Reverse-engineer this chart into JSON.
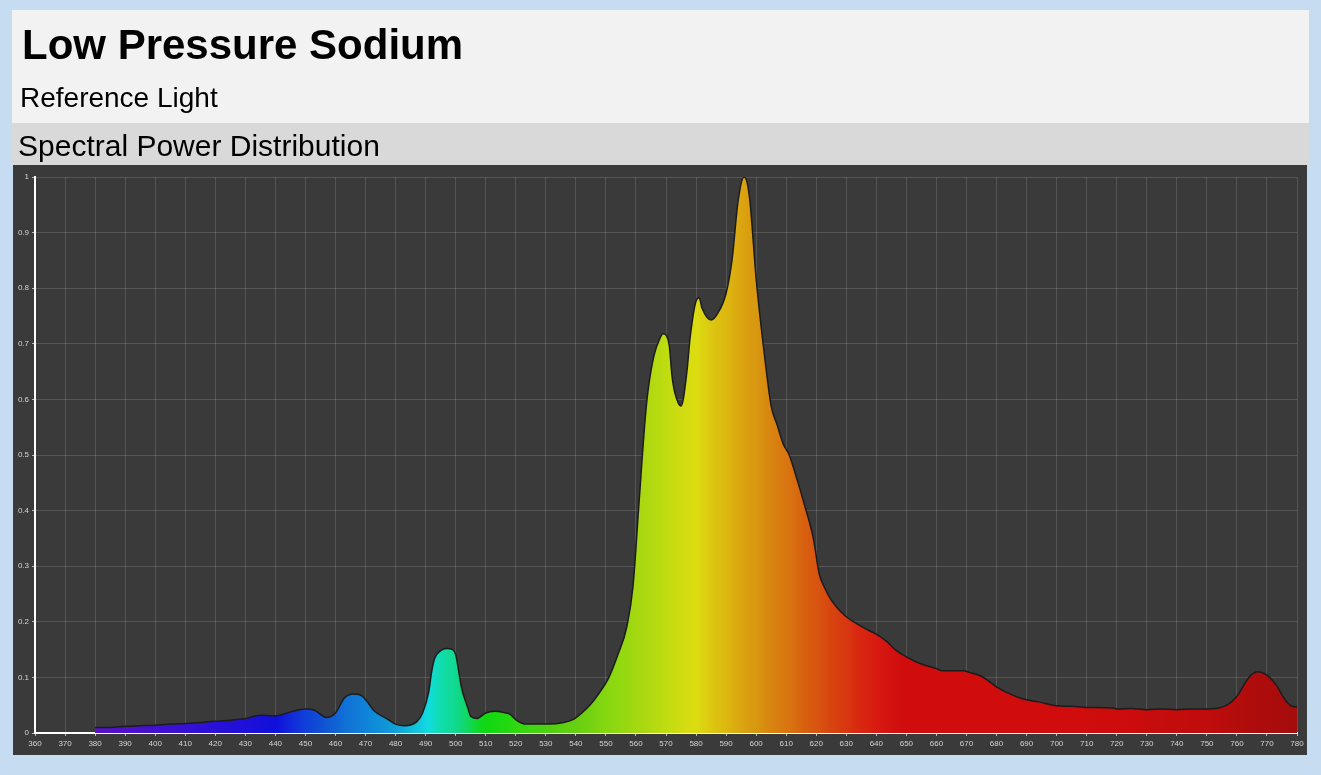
{
  "chart_data": {
    "type": "area",
    "title": "Low Pressure Sodium",
    "subtitle": "Reference Light",
    "annotations": [
      "Spectral Power Distribution"
    ],
    "x": [
      380,
      385,
      390,
      395,
      400,
      405,
      410,
      415,
      420,
      425,
      430,
      435,
      440,
      445,
      450,
      453,
      457,
      460,
      463,
      466,
      469,
      473,
      477,
      480,
      483,
      487,
      489,
      491,
      492,
      493,
      495,
      497,
      499,
      500,
      502,
      504,
      505,
      507,
      510,
      513,
      516,
      518,
      520,
      523,
      531,
      536,
      539,
      542,
      545,
      547,
      551,
      554,
      557,
      559,
      561,
      563,
      564,
      566,
      568,
      569,
      571,
      572,
      573,
      575,
      577,
      578,
      580,
      581,
      582,
      585,
      587,
      590,
      592,
      594,
      596,
      597,
      598,
      600,
      603,
      605,
      607,
      609,
      611,
      614,
      616,
      619,
      621,
      623,
      625,
      628,
      631,
      634,
      638,
      640,
      644,
      646,
      650,
      655,
      660,
      662,
      669,
      671,
      675,
      680,
      683,
      689,
      694,
      700,
      705,
      710,
      719,
      720,
      725,
      730,
      735,
      740,
      745,
      750,
      754,
      757,
      760,
      764,
      767,
      770,
      773,
      776,
      778,
      780
    ],
    "values": [
      0.01,
      0.01,
      0.012,
      0.013,
      0.014,
      0.016,
      0.017,
      0.019,
      0.021,
      0.023,
      0.026,
      0.032,
      0.031,
      0.038,
      0.043,
      0.041,
      0.028,
      0.036,
      0.063,
      0.07,
      0.066,
      0.039,
      0.026,
      0.016,
      0.013,
      0.02,
      0.036,
      0.073,
      0.11,
      0.134,
      0.148,
      0.152,
      0.15,
      0.141,
      0.08,
      0.046,
      0.03,
      0.026,
      0.036,
      0.039,
      0.037,
      0.034,
      0.024,
      0.016,
      0.016,
      0.019,
      0.024,
      0.036,
      0.052,
      0.066,
      0.1,
      0.141,
      0.192,
      0.263,
      0.412,
      0.561,
      0.615,
      0.679,
      0.71,
      0.718,
      0.7,
      0.642,
      0.611,
      0.588,
      0.652,
      0.71,
      0.777,
      0.783,
      0.764,
      0.743,
      0.753,
      0.791,
      0.852,
      0.957,
      1.0,
      0.99,
      0.953,
      0.817,
      0.669,
      0.588,
      0.554,
      0.52,
      0.5,
      0.449,
      0.412,
      0.351,
      0.286,
      0.259,
      0.239,
      0.219,
      0.205,
      0.195,
      0.183,
      0.178,
      0.162,
      0.151,
      0.137,
      0.124,
      0.116,
      0.112,
      0.112,
      0.109,
      0.102,
      0.083,
      0.074,
      0.061,
      0.056,
      0.049,
      0.048,
      0.046,
      0.045,
      0.043,
      0.044,
      0.042,
      0.043,
      0.042,
      0.043,
      0.043,
      0.045,
      0.051,
      0.066,
      0.1,
      0.11,
      0.104,
      0.087,
      0.06,
      0.049,
      0.047
    ],
    "colors": [
      "#5a10c8",
      "#5410ca",
      "#4e10cc",
      "#4810ce",
      "#4210d0",
      "#3c10d2",
      "#3610d4",
      "#3010d6",
      "#2a10d8",
      "#2410d8",
      "#1e10da",
      "#1810da",
      "#1010dc",
      "#1028da",
      "#1040d8",
      "#1048d6",
      "#1058d4",
      "#1062d4",
      "#1070d6",
      "#1078d6",
      "#1080d8",
      "#108cd8",
      "#1096d8",
      "#10a0d8",
      "#10b0da",
      "#10c4dc",
      "#10d0de",
      "#10dce0",
      "#10dcd0",
      "#10dcc8",
      "#10dcb0",
      "#10dca0",
      "#10da94",
      "#10d890",
      "#10d878",
      "#10d860",
      "#10d850",
      "#10d830",
      "#10d810",
      "#18d810",
      "#20d810",
      "#26d810",
      "#30d810",
      "#38d610",
      "#50d010",
      "#5cd010",
      "#64d010",
      "#6cd010",
      "#74d210",
      "#7cd410",
      "#88d810",
      "#90d810",
      "#98d810",
      "#a0d810",
      "#a8d810",
      "#acd810",
      "#aed810",
      "#b4da10",
      "#bada10",
      "#bcdc10",
      "#c2dc10",
      "#c6dc10",
      "#c8dc10",
      "#d0dc10",
      "#d6dc10",
      "#d8dc10",
      "#dcdc10",
      "#dcd810",
      "#dcd410",
      "#dcc810",
      "#dcc010",
      "#dcb810",
      "#dcb010",
      "#daa810",
      "#daa210",
      "#da9e10",
      "#d89c10",
      "#d89810",
      "#d88c10",
      "#d88410",
      "#d87e10",
      "#d87810",
      "#d87410",
      "#d86810",
      "#d86010",
      "#d85810",
      "#d85210",
      "#d84c10",
      "#d84410",
      "#d83c10",
      "#d83410",
      "#d82810",
      "#d82010",
      "#d81a10",
      "#d41410",
      "#d21010",
      "#d00c0c",
      "#d00c0c",
      "#d00c0c",
      "#d00c0c",
      "#d00c0c",
      "#d00c0c",
      "#d00c0c",
      "#d00c0c",
      "#d00c0c",
      "#d00c0c",
      "#d00c0c",
      "#d00c0c",
      "#d00c0c",
      "#d00c0c",
      "#ce0c0c",
      "#ce0c0c",
      "#cc0c0c",
      "#c80c0c",
      "#c60c0c",
      "#c40c0c",
      "#c20c0c",
      "#c00c0c",
      "#bc0c0c",
      "#b80c0c",
      "#b40c0c",
      "#b00c0c",
      "#ae0c0c",
      "#ac0c0c",
      "#aa0c0c",
      "#a80c0c",
      "#a60c0c",
      "#a50c0c"
    ],
    "xlim": [
      360,
      780
    ],
    "xticks": [
      360,
      370,
      380,
      390,
      400,
      410,
      420,
      430,
      440,
      450,
      460,
      470,
      480,
      490,
      500,
      510,
      520,
      530,
      540,
      550,
      560,
      570,
      580,
      590,
      600,
      610,
      620,
      630,
      640,
      650,
      660,
      670,
      680,
      690,
      700,
      710,
      720,
      730,
      740,
      750,
      760,
      770,
      780
    ],
    "ylim": [
      0,
      1
    ],
    "yticks": [
      0,
      0.1,
      0.2,
      0.3,
      0.4,
      0.5,
      0.6,
      0.7,
      0.8,
      0.9,
      1
    ],
    "grid": true,
    "legend": false
  }
}
